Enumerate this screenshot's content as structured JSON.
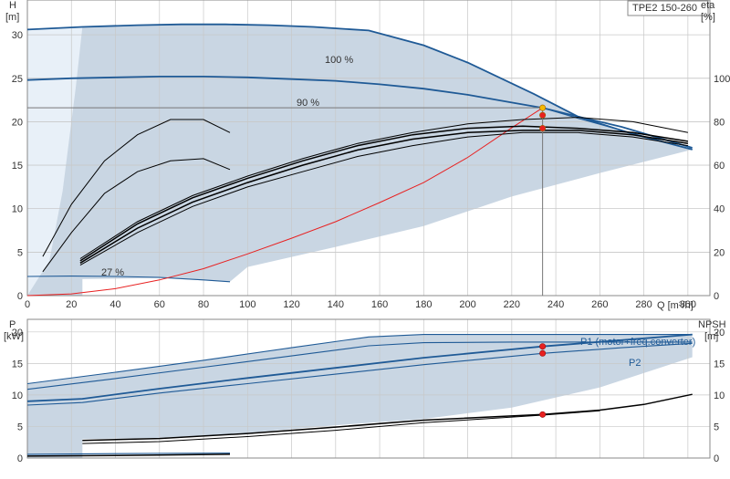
{
  "chart_data": [
    {
      "type": "line",
      "title": "TPE2 150-260",
      "ylabel": "H",
      "yunit": "[m]",
      "y2label": "eta",
      "y2unit": "[%]",
      "xlabel": "Q [m³/h]",
      "xlim": [
        0,
        310
      ],
      "ylim": [
        0,
        34
      ],
      "y2lim": [
        0,
        136
      ],
      "xticks": [
        0,
        20,
        40,
        60,
        80,
        100,
        120,
        140,
        160,
        180,
        200,
        220,
        240,
        260,
        280,
        300
      ],
      "yticks": [
        0,
        5,
        10,
        15,
        20,
        25,
        30
      ],
      "y2ticks": [
        0,
        20,
        40,
        60,
        80,
        100
      ],
      "grid": true,
      "labels": {
        "c100": "100 %",
        "c90": "90 %",
        "c27": "27 %"
      },
      "series": [
        {
          "id": "h100",
          "axis": "y",
          "style": "blue",
          "x": [
            0,
            25,
            50,
            70,
            90,
            110,
            130,
            155,
            180,
            200,
            230,
            250,
            275,
            302
          ],
          "y": [
            30.6,
            30.9,
            31.1,
            31.2,
            31.2,
            31.1,
            30.9,
            30.5,
            28.8,
            26.8,
            23.2,
            20.6,
            18.6,
            16.8
          ]
        },
        {
          "id": "h90",
          "axis": "y",
          "style": "blue",
          "x": [
            0,
            20,
            40,
            60,
            80,
            100,
            120,
            140,
            160,
            180,
            200,
            220,
            234,
            250,
            270,
            302
          ],
          "y": [
            24.8,
            25.0,
            25.1,
            25.2,
            25.2,
            25.1,
            24.9,
            24.7,
            24.3,
            23.8,
            23.1,
            22.2,
            21.6,
            20.6,
            19.4,
            17.0
          ]
        },
        {
          "id": "h27",
          "axis": "y",
          "style": "blue-thin",
          "x": [
            0,
            20,
            40,
            60,
            80,
            92
          ],
          "y": [
            2.2,
            2.25,
            2.2,
            2.1,
            1.8,
            1.6
          ]
        },
        {
          "id": "h100b",
          "axis": "y",
          "style": "blue-thin",
          "x": [
            234,
            250,
            270,
            302
          ],
          "y": [
            21.6,
            20.4,
            19.0,
            16.8
          ]
        },
        {
          "id": "system",
          "axis": "y",
          "style": "red",
          "x": [
            0,
            20,
            40,
            60,
            80,
            100,
            120,
            140,
            160,
            180,
            200,
            220,
            234
          ],
          "y": [
            0,
            0.2,
            0.8,
            1.8,
            3.1,
            4.8,
            6.6,
            8.5,
            10.7,
            13.0,
            15.9,
            19.3,
            21.6
          ]
        },
        {
          "id": "eta1",
          "axis": "y2",
          "style": "black-thin",
          "x": [
            7,
            20,
            35,
            50,
            65,
            80,
            92
          ],
          "y": [
            18,
            42,
            62,
            74,
            81,
            81,
            75
          ]
        },
        {
          "id": "eta2",
          "axis": "y2",
          "style": "black-thin",
          "x": [
            7,
            20,
            35,
            50,
            65,
            80,
            92
          ],
          "y": [
            11,
            29,
            47,
            57,
            62,
            63,
            58
          ]
        },
        {
          "id": "eta3",
          "axis": "y2",
          "style": "black-thin",
          "x": [
            24,
            50,
            75,
            100,
            125,
            150,
            175,
            200,
            225,
            250,
            275,
            300
          ],
          "y": [
            17,
            34,
            46,
            55,
            63,
            70,
            75,
            79,
            81,
            82,
            80,
            75
          ]
        },
        {
          "id": "eta4",
          "axis": "y2",
          "style": "black",
          "x": [
            24,
            50,
            75,
            100,
            125,
            150,
            175,
            200,
            225,
            250,
            275,
            300
          ],
          "y": [
            16,
            33,
            45,
            54,
            62,
            69,
            74,
            77,
            78,
            77,
            75,
            71
          ]
        },
        {
          "id": "eta5",
          "axis": "y2",
          "style": "black",
          "x": [
            24,
            50,
            75,
            100,
            125,
            150,
            175,
            200,
            225,
            250,
            275,
            300
          ],
          "y": [
            15,
            31,
            43,
            52,
            60,
            67,
            72,
            75,
            76,
            76,
            74,
            70
          ]
        },
        {
          "id": "eta6",
          "axis": "y2",
          "style": "black-thin",
          "x": [
            24,
            50,
            75,
            100,
            125,
            150,
            175,
            200,
            225,
            250,
            275,
            300
          ],
          "y": [
            14,
            29,
            41,
            50,
            57,
            64,
            69,
            73,
            75,
            75,
            73,
            69
          ]
        }
      ],
      "markers": [
        {
          "x": 234,
          "y": 21.6,
          "axis": "y",
          "color": "#f5b800"
        },
        {
          "x": 234,
          "y": 83,
          "axis": "y2",
          "color": "#e82020"
        },
        {
          "x": 234,
          "y": 77,
          "axis": "y2",
          "color": "#e82020"
        }
      ],
      "op_point": {
        "x": 234,
        "y": 21.6
      }
    },
    {
      "type": "line",
      "ylabel": "P",
      "yunit": "[kW]",
      "y2label": "NPSH",
      "y2unit": "[m]",
      "xlim": [
        0,
        310
      ],
      "ylim": [
        0,
        22
      ],
      "y2lim": [
        0,
        22
      ],
      "yticks": [
        0,
        5,
        10,
        15,
        20
      ],
      "y2ticks": [
        0,
        5,
        10,
        15,
        20
      ],
      "grid": true,
      "labels": {
        "p1": "P1 (motor+freq.converter)",
        "p2": "P2"
      },
      "series": [
        {
          "id": "p1max",
          "axis": "y",
          "style": "blue-thin",
          "x": [
            0,
            40,
            80,
            120,
            155,
            180,
            220,
            260,
            302
          ],
          "y": [
            11.8,
            13.6,
            15.5,
            17.5,
            19.2,
            19.6,
            19.6,
            19.6,
            19.6
          ]
        },
        {
          "id": "p2max",
          "axis": "y",
          "style": "blue-thin",
          "x": [
            0,
            40,
            80,
            120,
            155,
            180,
            220,
            260,
            302
          ],
          "y": [
            10.9,
            12.6,
            14.4,
            16.2,
            17.8,
            18.3,
            18.4,
            18.4,
            18.4
          ]
        },
        {
          "id": "p1",
          "axis": "y",
          "style": "blue",
          "x": [
            0,
            25,
            60,
            100,
            140,
            180,
            234,
            270,
            302
          ],
          "y": [
            9.0,
            9.4,
            11.0,
            12.7,
            14.3,
            15.9,
            17.7,
            18.7,
            19.6
          ]
        },
        {
          "id": "p2",
          "axis": "y",
          "style": "blue-thin",
          "x": [
            0,
            25,
            60,
            100,
            140,
            180,
            234,
            270,
            302
          ],
          "y": [
            8.4,
            8.8,
            10.3,
            11.8,
            13.3,
            14.8,
            16.6,
            17.5,
            18.2
          ]
        },
        {
          "id": "pmin1",
          "axis": "y",
          "style": "blue-thin",
          "x": [
            0,
            40,
            92
          ],
          "y": [
            0.6,
            0.7,
            0.8
          ]
        },
        {
          "id": "pmin2",
          "axis": "y",
          "style": "black",
          "x": [
            0,
            40,
            92
          ],
          "y": [
            0.3,
            0.4,
            0.6
          ]
        },
        {
          "id": "npsh1",
          "axis": "y2",
          "style": "black",
          "x": [
            25,
            60,
            100,
            140,
            180,
            234,
            260,
            280,
            302
          ],
          "y": [
            2.8,
            3.1,
            3.9,
            4.9,
            6.0,
            6.9,
            7.6,
            8.5,
            10.1
          ]
        },
        {
          "id": "npsh2",
          "axis": "y2",
          "style": "black-thin",
          "x": [
            25,
            60,
            100,
            140,
            180,
            234,
            260
          ],
          "y": [
            2.3,
            2.6,
            3.4,
            4.4,
            5.6,
            6.8,
            7.5
          ]
        }
      ],
      "markers": [
        {
          "x": 234,
          "y": 17.7,
          "axis": "y",
          "color": "#e82020"
        },
        {
          "x": 234,
          "y": 16.6,
          "axis": "y",
          "color": "#e82020"
        },
        {
          "x": 234,
          "y": 6.9,
          "axis": "y2",
          "color": "#e82020"
        }
      ]
    }
  ]
}
